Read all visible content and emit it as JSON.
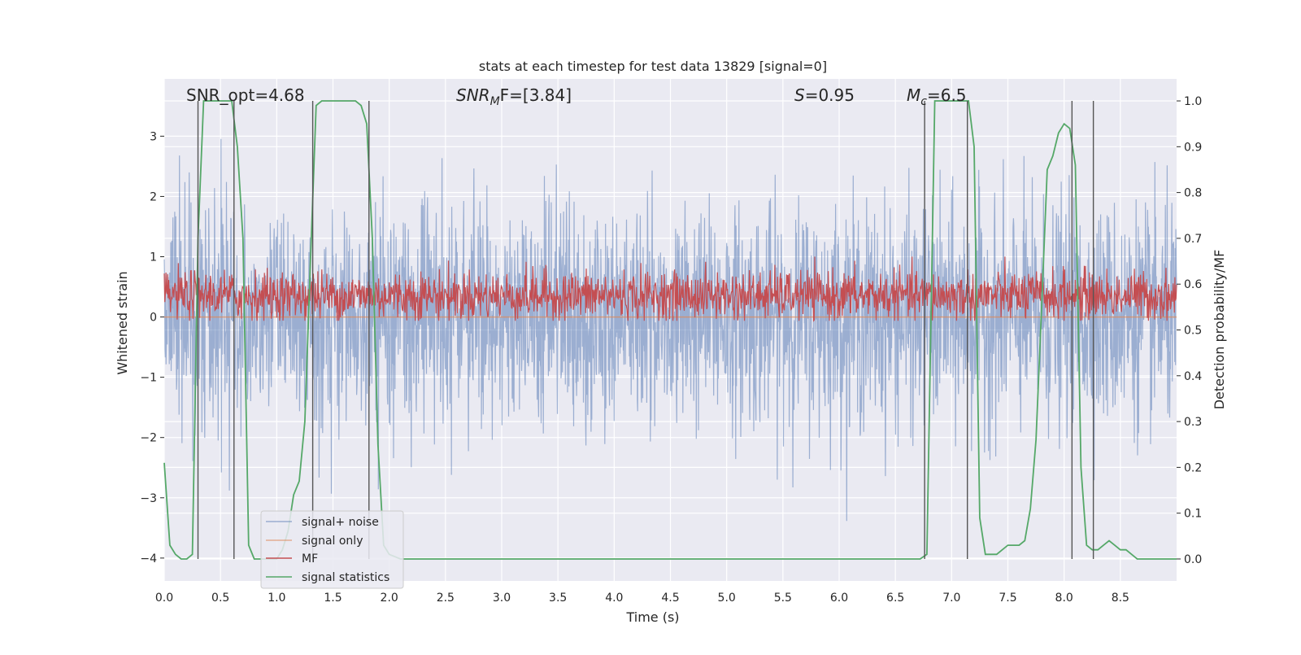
{
  "chart_data": {
    "type": "line",
    "title": "stats at each timestep for test data 13829 [signal=0]",
    "xlabel": "Time (s)",
    "ylabel": "Whitened strain",
    "ylabel_right": "Detection probability/MF",
    "xlim": [
      0.0,
      9.0
    ],
    "ylim": [
      -4.38,
      3.95
    ],
    "ylim_right": [
      -0.048,
      1.048
    ],
    "xticks": [
      0.0,
      0.5,
      1.0,
      1.5,
      2.0,
      2.5,
      3.0,
      3.5,
      4.0,
      4.5,
      5.0,
      5.5,
      6.0,
      6.5,
      7.0,
      7.5,
      8.0,
      8.5
    ],
    "xtick_labels": [
      "0.0",
      "0.5",
      "1.0",
      "1.5",
      "2.0",
      "2.5",
      "3.0",
      "3.5",
      "4.0",
      "4.5",
      "5.0",
      "5.5",
      "6.0",
      "6.5",
      "7.0",
      "7.5",
      "8.0",
      "8.5"
    ],
    "yticks": [
      -4,
      -3,
      -2,
      -1,
      0,
      1,
      2,
      3
    ],
    "ytick_labels": [
      "−4",
      "−3",
      "−2",
      "−1",
      "0",
      "1",
      "2",
      "3"
    ],
    "yticks_right": [
      0.0,
      0.1,
      0.2,
      0.3,
      0.4,
      0.5,
      0.6,
      0.7,
      0.8,
      0.9,
      1.0
    ],
    "ytick_labels_right": [
      "0.0",
      "0.1",
      "0.2",
      "0.3",
      "0.4",
      "0.5",
      "0.6",
      "0.7",
      "0.8",
      "0.9",
      "1.0"
    ],
    "grid": true,
    "legend_position": "lower-left",
    "annotations": {
      "snr_opt": "SNR_opt=4.68",
      "snr_mf_sym": "SNR",
      "snr_mf_sub": "M",
      "snr_mf_rest": "F=[3.84]",
      "s_sym": "S",
      "s_rest": "=0.95",
      "mc_sym": "M",
      "mc_sub": "c",
      "mc_rest": "=6.5"
    },
    "series": [
      {
        "name": "signal+ noise",
        "color": "#4c72b0",
        "axis": "left",
        "kind": "noise",
        "x_range": [
          0.0,
          9.0
        ],
        "envelope_typical": [
          -1.8,
          1.8
        ],
        "extremes": {
          "max": 3.6,
          "min": -3.6
        }
      },
      {
        "name": "signal only",
        "color": "#dd8452",
        "axis": "left",
        "x": [
          0.0,
          9.0
        ],
        "y": [
          0.0,
          0.0
        ]
      },
      {
        "name": "MF",
        "color": "#c44e52",
        "axis": "right",
        "kind": "noise",
        "x_range": [
          0.0,
          9.0
        ],
        "envelope_typical": [
          0.53,
          0.62
        ],
        "extremes": {
          "max": 0.66,
          "min": 0.52
        }
      },
      {
        "name": "signal statistics",
        "color": "#55a868",
        "axis": "right",
        "x": [
          0.0,
          0.05,
          0.1,
          0.15,
          0.2,
          0.25,
          0.3,
          0.35,
          0.4,
          0.45,
          0.5,
          0.55,
          0.6,
          0.65,
          0.7,
          0.75,
          0.8,
          0.85,
          0.9,
          0.95,
          1.0,
          1.05,
          1.1,
          1.15,
          1.2,
          1.25,
          1.3,
          1.35,
          1.4,
          1.45,
          1.5,
          1.55,
          1.6,
          1.65,
          1.7,
          1.75,
          1.8,
          1.85,
          1.9,
          1.95,
          2.0,
          2.1,
          2.2,
          6.65,
          6.72,
          6.78,
          6.85,
          6.9,
          7.0,
          7.05,
          7.1,
          7.15,
          7.2,
          7.25,
          7.3,
          7.35,
          7.4,
          7.45,
          7.5,
          7.55,
          7.6,
          7.65,
          7.7,
          7.75,
          7.8,
          7.85,
          7.9,
          7.95,
          8.0,
          8.05,
          8.1,
          8.15,
          8.2,
          8.25,
          8.3,
          8.35,
          8.4,
          8.45,
          8.5,
          8.55,
          8.6,
          8.65,
          8.7,
          8.75,
          8.8,
          8.85,
          8.9,
          8.95,
          9.0
        ],
        "y": [
          0.21,
          0.03,
          0.01,
          0.0,
          0.0,
          0.01,
          0.7,
          1.0,
          1.0,
          1.0,
          1.0,
          1.0,
          1.0,
          0.9,
          0.7,
          0.03,
          0.0,
          0.0,
          0.0,
          0.0,
          0.0,
          0.02,
          0.06,
          0.14,
          0.17,
          0.3,
          0.65,
          0.99,
          1.0,
          1.0,
          1.0,
          1.0,
          1.0,
          1.0,
          1.0,
          0.99,
          0.95,
          0.7,
          0.25,
          0.03,
          0.01,
          0.0,
          0.0,
          0.0,
          0.0,
          0.01,
          1.0,
          1.0,
          1.0,
          1.0,
          1.0,
          1.0,
          0.9,
          0.09,
          0.01,
          0.01,
          0.01,
          0.02,
          0.03,
          0.03,
          0.03,
          0.04,
          0.11,
          0.26,
          0.55,
          0.85,
          0.88,
          0.93,
          0.95,
          0.94,
          0.86,
          0.2,
          0.03,
          0.02,
          0.02,
          0.03,
          0.04,
          0.03,
          0.02,
          0.02,
          0.01,
          0.0,
          0.0,
          0.0,
          0.0,
          0.0,
          0.0,
          0.0,
          0.0
        ]
      }
    ],
    "vertical_markers_x": [
      0.3,
      0.62,
      1.32,
      1.82,
      6.76,
      7.14,
      8.07,
      8.26
    ]
  }
}
